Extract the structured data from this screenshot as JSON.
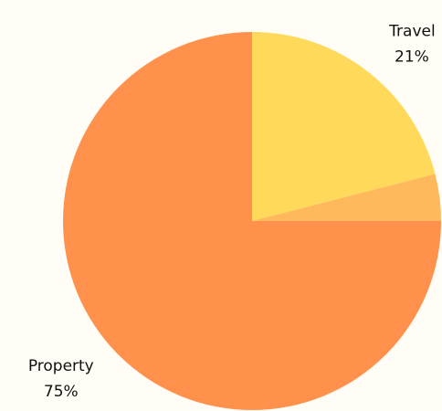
{
  "chart_data": {
    "type": "pie",
    "categories": [
      "Travel",
      null,
      "Property"
    ],
    "values": [
      21,
      4,
      75
    ],
    "value_labels": [
      "21%",
      null,
      "75%"
    ],
    "colors": [
      "#ffd95a",
      "#ffb85c",
      "#ff914d"
    ]
  }
}
